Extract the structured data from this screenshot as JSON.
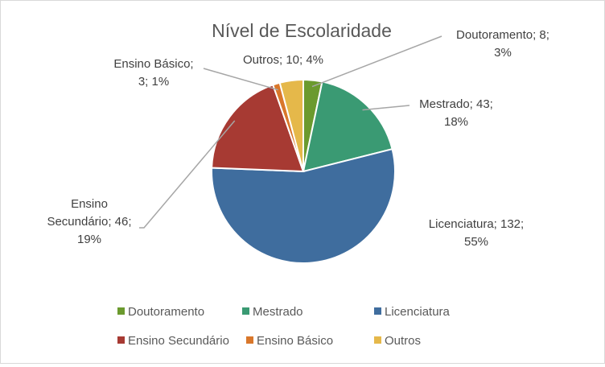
{
  "chart_data": {
    "type": "pie",
    "title": "Nível de Escolaridade",
    "categories": [
      "Doutoramento",
      "Mestrado",
      "Licenciatura",
      "Ensino Secundário",
      "Ensino Básico",
      "Outros"
    ],
    "values": [
      8,
      43,
      132,
      46,
      3,
      10
    ],
    "percent_labels": [
      "3%",
      "18%",
      "55%",
      "19%",
      "1%",
      "4%"
    ],
    "data_labels": [
      [
        "Doutoramento; 8;",
        "3%"
      ],
      [
        "Mestrado; 43;",
        "18%"
      ],
      [
        "Licenciatura; 132;",
        "55%"
      ],
      [
        "Ensino",
        "Secundário; 46;",
        "19%"
      ],
      [
        "Ensino Básico;",
        "3; 1%"
      ],
      [
        "Outros; 10; 4%"
      ]
    ],
    "colors": [
      "#6b9a2e",
      "#3a9a73",
      "#3f6d9e",
      "#a73a33",
      "#d9772b",
      "#e5b84a"
    ],
    "start_angle_deg": 0,
    "direction": "clockwise",
    "legend_position": "bottom"
  }
}
